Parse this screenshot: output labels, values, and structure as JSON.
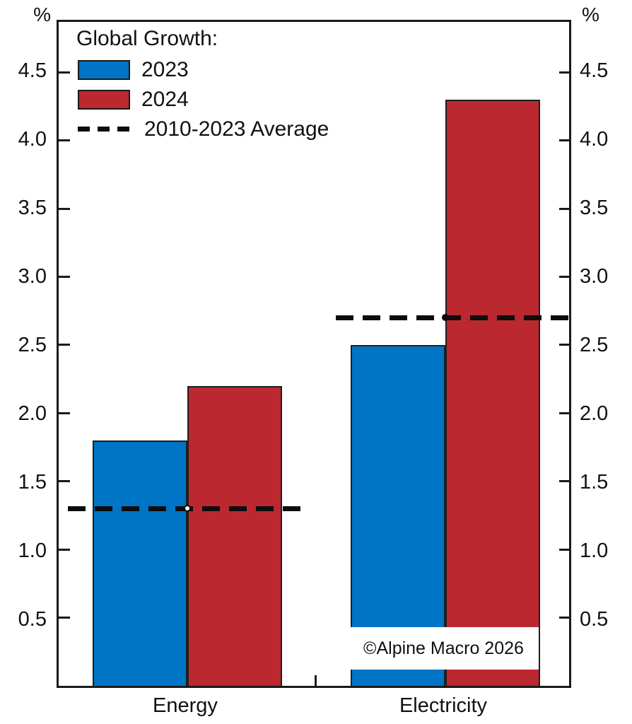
{
  "chart_data": {
    "type": "bar",
    "title": "Global Growth:",
    "unit_left": "%",
    "unit_right": "%",
    "categories": [
      "Energy",
      "Electricity"
    ],
    "series": [
      {
        "name": "2023",
        "color": "#0074c5",
        "values": [
          1.8,
          2.5
        ]
      },
      {
        "name": "2024",
        "color": "#bb2830",
        "values": [
          2.2,
          4.3
        ]
      }
    ],
    "average_line": {
      "label": "2010-2023 Average",
      "color": "#0d0d0d",
      "style": "dashed",
      "values": [
        1.3,
        2.7
      ]
    },
    "ylim": [
      0,
      4.87
    ],
    "ytick_labels": [
      "4.5",
      "4.0",
      "3.5",
      "3.0",
      "2.5",
      "2.0",
      "1.5",
      "1.0",
      "0.5"
    ],
    "ytick_values": [
      4.5,
      4.0,
      3.5,
      3.0,
      2.5,
      2.0,
      1.5,
      1.0,
      0.5
    ],
    "grid": false,
    "legend_position": "top-left"
  },
  "legend": {
    "title": "Global Growth:",
    "item_2023": "2023",
    "item_2024": "2024",
    "item_average": "2010-2023 Average"
  },
  "watermark": "©Alpine Macro 2026"
}
